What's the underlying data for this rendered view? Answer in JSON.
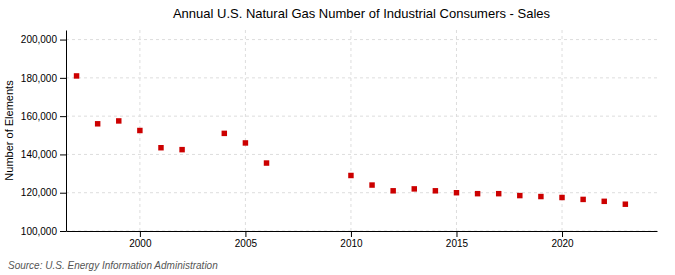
{
  "chart_data": {
    "type": "scatter",
    "title": "Annual U.S. Natural Gas Number of Industrial Consumers - Sales",
    "ylabel": "Number of Elements",
    "source": "Source: U.S. Energy Information Administration",
    "x": [
      1997,
      1998,
      1999,
      2000,
      2001,
      2002,
      2004,
      2005,
      2006,
      2010,
      2011,
      2012,
      2013,
      2014,
      2015,
      2016,
      2017,
      2018,
      2019,
      2020,
      2021,
      2022,
      2023
    ],
    "values": [
      181000,
      156000,
      157500,
      152500,
      143500,
      142500,
      151000,
      146000,
      135500,
      129000,
      124000,
      121000,
      122000,
      121000,
      120000,
      119500,
      119500,
      118500,
      118000,
      117500,
      116500,
      115500,
      114000
    ],
    "color": "#cc0000",
    "marker": "square",
    "xlim": [
      1996.5,
      2024.5
    ],
    "ylim": [
      100000,
      205000
    ],
    "xticks": [
      2000,
      2005,
      2010,
      2015,
      2020
    ],
    "yticks": [
      {
        "value": 100000,
        "label": "100,000"
      },
      {
        "value": 120000,
        "label": "120,000"
      },
      {
        "value": 140000,
        "label": "140,000"
      },
      {
        "value": 160000,
        "label": "160,000"
      },
      {
        "value": 180000,
        "label": "180,000"
      },
      {
        "value": 200000,
        "label": "200,000"
      }
    ],
    "grid": true
  }
}
